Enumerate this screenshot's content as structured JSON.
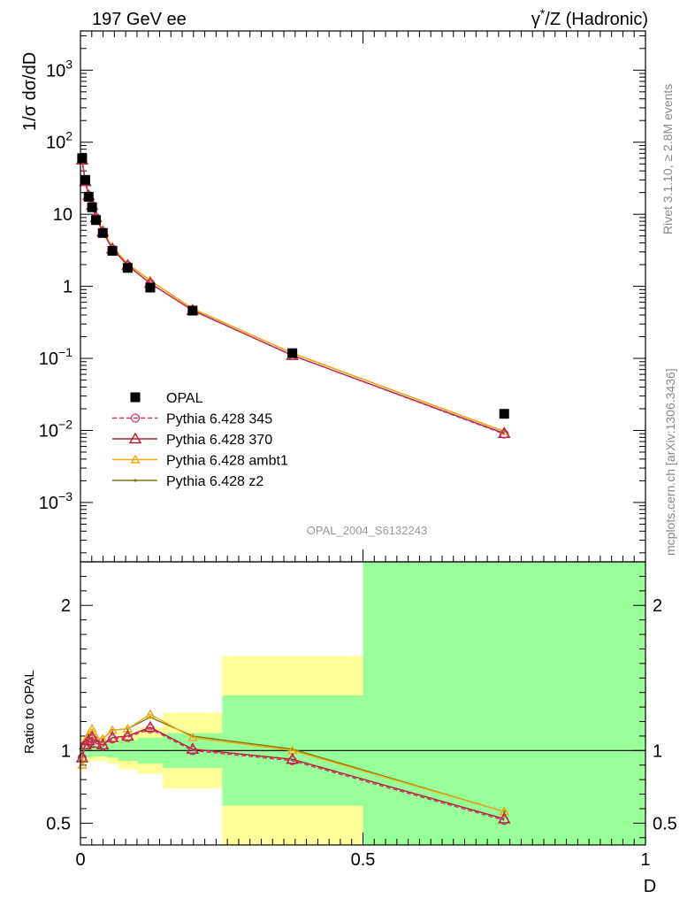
{
  "header": {
    "left": "197 GeV ee",
    "right_prefix": "γ",
    "right_sup": "*",
    "right_suffix": "/Z (Hadronic)"
  },
  "side_labels": {
    "rivet": "Rivet 3.1.10, ≥ 2.8M events",
    "mcplots": "mcplots.cern.ch [arXiv:1306.3436]"
  },
  "watermark": "OPAL_2004_S6132243",
  "main_ylabel": "1/σ dσ/dD",
  "ratio_ylabel": "Ratio to OPAL",
  "xlabel": "D",
  "legend": [
    {
      "label": "OPAL",
      "color": "#000000",
      "marker": "square",
      "dash": false
    },
    {
      "label": "Pythia 6.428 345",
      "color": "#cc3366",
      "marker": "circle",
      "dash": true
    },
    {
      "label": "Pythia 6.428 370",
      "color": "#aa2233",
      "marker": "triangle",
      "dash": false
    },
    {
      "label": "Pythia 6.428 ambt1",
      "color": "#f0a818",
      "marker": "triangle",
      "dash": false
    },
    {
      "label": "Pythia 6.428 z2",
      "color": "#7a7a10",
      "marker": "dot",
      "dash": false
    }
  ],
  "y_ticks_main": [
    {
      "v": 0.001,
      "base": "10",
      "exp": "−3"
    },
    {
      "v": 0.01,
      "base": "10",
      "exp": "−2"
    },
    {
      "v": 0.1,
      "base": "10",
      "exp": "−1"
    },
    {
      "v": 1,
      "base": "1",
      "exp": ""
    },
    {
      "v": 10,
      "base": "10",
      "exp": ""
    },
    {
      "v": 100,
      "base": "10",
      "exp": "2"
    },
    {
      "v": 1000,
      "base": "10",
      "exp": "3"
    }
  ],
  "y_ticks_ratio": [
    {
      "v": 0.5,
      "label": "0.5"
    },
    {
      "v": 1,
      "label": "1"
    },
    {
      "v": 2,
      "label": "2"
    }
  ],
  "x_ticks": [
    {
      "v": 0,
      "label": "0"
    },
    {
      "v": 0.5,
      "label": "0.5"
    },
    {
      "v": 1,
      "label": "1"
    }
  ],
  "chart_data": {
    "type": "line",
    "x_range": [
      0,
      1
    ],
    "y_range_main": [
      0.00015,
      3500
    ],
    "y_scale_main": "log",
    "y_range_ratio": [
      0.35,
      2.3
    ],
    "x": [
      0.003,
      0.0085,
      0.0145,
      0.0205,
      0.0275,
      0.0395,
      0.0565,
      0.0835,
      0.1235,
      0.1985,
      0.375,
      0.75
    ],
    "opal": [
      60,
      30,
      17.5,
      12.5,
      8.3,
      5.5,
      3.1,
      1.8,
      0.96,
      0.46,
      0.118,
      0.017
    ],
    "series": [
      {
        "name": "Pythia 6.428 345",
        "values": [
          57,
          28.5,
          18.2,
          13.3,
          9.0,
          5.7,
          3.3,
          1.95,
          1.1,
          0.46,
          0.11,
          0.0089
        ]
      },
      {
        "name": "Pythia 6.428 370",
        "values": [
          57,
          28.5,
          18.2,
          13.3,
          9.0,
          5.7,
          3.3,
          1.95,
          1.1,
          0.465,
          0.11,
          0.0091
        ]
      },
      {
        "name": "Pythia 6.428 ambt1",
        "values": [
          55,
          29.5,
          18.7,
          13.9,
          9.2,
          5.9,
          3.5,
          2.05,
          1.2,
          0.49,
          0.118,
          0.0097
        ]
      },
      {
        "name": "Pythia 6.428 z2",
        "values": [
          55,
          29.5,
          18.7,
          13.9,
          9.2,
          5.9,
          3.5,
          2.05,
          1.2,
          0.49,
          0.118,
          0.0097
        ]
      }
    ],
    "ratios": [
      {
        "name": "Pythia 6.428 345",
        "values": [
          0.95,
          1.04,
          1.06,
          1.08,
          1.05,
          1.03,
          1.08,
          1.09,
          1.15,
          1.0,
          0.93,
          0.52
        ]
      },
      {
        "name": "Pythia 6.428 370",
        "values": [
          0.95,
          1.04,
          1.07,
          1.09,
          1.05,
          1.04,
          1.09,
          1.1,
          1.16,
          1.01,
          0.94,
          0.53
        ]
      },
      {
        "name": "Pythia 6.428 ambt1",
        "values": [
          0.9,
          1.06,
          1.11,
          1.15,
          1.09,
          1.08,
          1.14,
          1.15,
          1.25,
          1.09,
          1.0,
          0.58
        ]
      },
      {
        "name": "Pythia 6.428 z2",
        "values": [
          0.93,
          1.07,
          1.11,
          1.14,
          1.09,
          1.08,
          1.14,
          1.15,
          1.23,
          1.1,
          1.01,
          0.58
        ]
      }
    ],
    "bands": [
      {
        "x0": 0.0,
        "x1": 0.006,
        "g0": 0.96,
        "g1": 1.05,
        "y0": 0.92,
        "y1": 1.09
      },
      {
        "x0": 0.006,
        "x1": 0.011,
        "g0": 0.95,
        "g1": 1.06,
        "y0": 0.91,
        "y1": 1.1
      },
      {
        "x0": 0.011,
        "x1": 0.018,
        "g0": 0.95,
        "g1": 1.05,
        "y0": 0.92,
        "y1": 1.08
      },
      {
        "x0": 0.018,
        "x1": 0.023,
        "g0": 0.96,
        "g1": 1.05,
        "y0": 0.93,
        "y1": 1.08
      },
      {
        "x0": 0.023,
        "x1": 0.032,
        "g0": 0.96,
        "g1": 1.05,
        "y0": 0.93,
        "y1": 1.07
      },
      {
        "x0": 0.032,
        "x1": 0.047,
        "g0": 0.96,
        "g1": 1.04,
        "y0": 0.93,
        "y1": 1.07
      },
      {
        "x0": 0.047,
        "x1": 0.066,
        "g0": 0.95,
        "g1": 1.05,
        "y0": 0.91,
        "y1": 1.09
      },
      {
        "x0": 0.066,
        "x1": 0.101,
        "g0": 0.93,
        "g1": 1.07,
        "y0": 0.87,
        "y1": 1.13
      },
      {
        "x0": 0.101,
        "x1": 0.146,
        "g0": 0.91,
        "g1": 1.09,
        "y0": 0.84,
        "y1": 1.16
      },
      {
        "x0": 0.146,
        "x1": 0.251,
        "g0": 0.88,
        "g1": 1.12,
        "y0": 0.74,
        "y1": 1.26
      },
      {
        "x0": 0.251,
        "x1": 0.5,
        "g0": 0.62,
        "g1": 1.38,
        "y0": 0.35,
        "y1": 1.65
      },
      {
        "x0": 0.5,
        "x1": 1.0,
        "g0": 0.35,
        "g1": 2.3,
        "y0": 0.35,
        "y1": 2.3
      }
    ]
  },
  "colors": {
    "band_inner": "#99ff99",
    "band_outer": "#ffff99",
    "reference_line": "#000000"
  }
}
